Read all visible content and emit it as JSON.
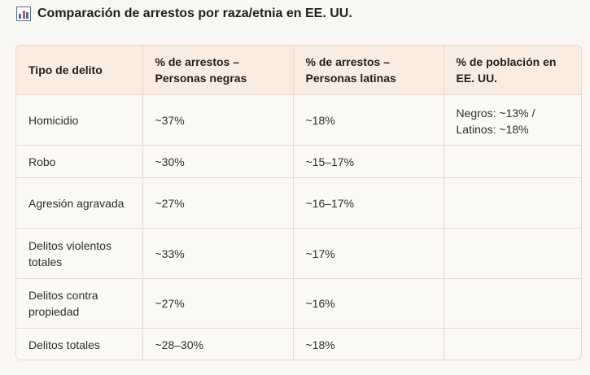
{
  "title": {
    "icon": "bar-chart-icon",
    "text": "Comparación de arrestos por raza/etnia en EE. UU."
  },
  "table": {
    "headers": [
      "Tipo de delito",
      "% de arrestos – Personas negras",
      "% de arrestos – Personas latinas",
      "% de población en EE. UU."
    ],
    "rows": [
      [
        "Homicidio",
        "~37%",
        "~18%",
        "Negros: ~13% / Latinos: ~18%"
      ],
      [
        "Robo",
        "~30%",
        "~15–17%",
        ""
      ],
      [
        "Agresión agravada",
        "~27%",
        "~16–17%",
        ""
      ],
      [
        "Delitos violentos totales",
        "~33%",
        "~17%",
        ""
      ],
      [
        "Delitos contra propiedad",
        "~27%",
        "~16%",
        ""
      ],
      [
        "Delitos totales",
        "~28–30%",
        "~18%",
        ""
      ]
    ]
  }
}
